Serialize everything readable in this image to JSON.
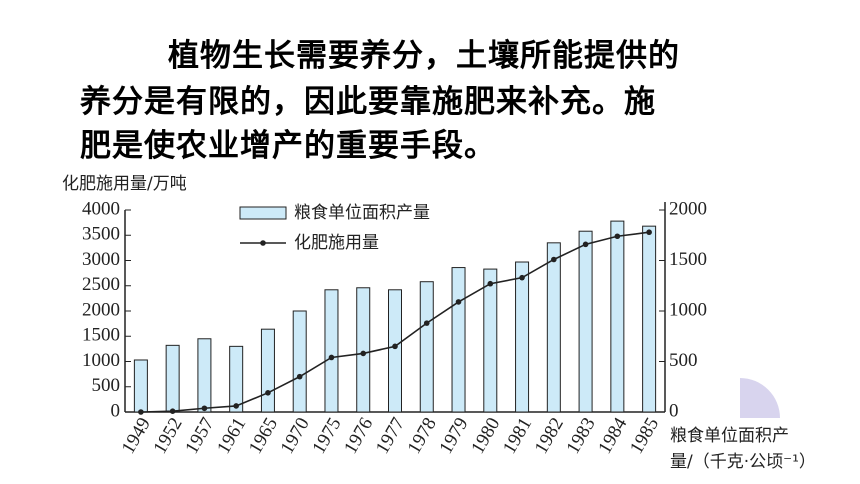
{
  "paragraph": [
    "植物生长需要养分，土壤所能提供的",
    "养分是有限的，因此要靠施肥来补充。施",
    "肥是使农业增产的重要手段。"
  ],
  "chart_data": {
    "type": "bar-line",
    "y_label": "化肥施用量/万吨",
    "y2_label": [
      "粮食单位面积产",
      "量/（千克·公顷⁻¹）"
    ],
    "categories": [
      "1949",
      "1952",
      "1957",
      "1961",
      "1965",
      "1970",
      "1975",
      "1976",
      "1977",
      "1978",
      "1979",
      "1980",
      "1981",
      "1982",
      "1983",
      "1984",
      "1985"
    ],
    "series": [
      {
        "name": "粮食单位面积产量",
        "type": "bar",
        "color": "#cdeaf8",
        "values": [
          1030,
          1320,
          1450,
          1300,
          1640,
          2000,
          2420,
          2460,
          2420,
          2580,
          2860,
          2830,
          2970,
          3350,
          3580,
          3780,
          3680
        ]
      },
      {
        "name": "化肥施用量",
        "type": "line",
        "axis": "y2",
        "color": "#222222",
        "values": [
          0,
          8,
          37,
          60,
          190,
          350,
          540,
          580,
          650,
          880,
          1090,
          1270,
          1330,
          1510,
          1660,
          1740,
          1780
        ]
      }
    ],
    "ylim": [
      0,
      4000
    ],
    "yticks": [
      0,
      500,
      1000,
      1500,
      2000,
      2500,
      3000,
      3500,
      4000
    ],
    "y2lim": [
      0,
      2000
    ],
    "y2ticks": [
      0,
      500,
      1000,
      1500,
      2000
    ]
  }
}
